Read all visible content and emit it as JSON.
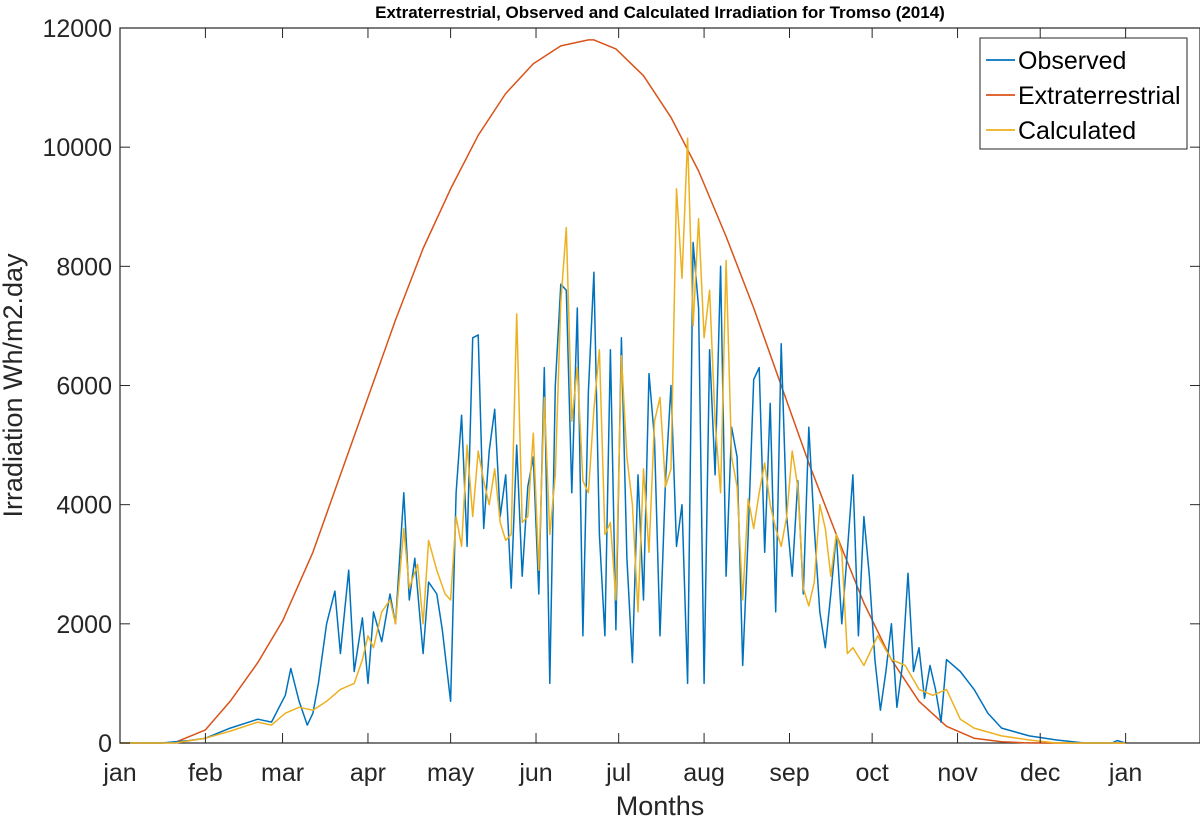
{
  "chart_data": {
    "type": "line",
    "title": "Extraterrestrial, Observed and Calculated Irradiation for Tromso (2014)",
    "xlabel": "Months",
    "ylabel": "Irradiation Wh/m2.day",
    "xlim": [
      0,
      392
    ],
    "ylim": [
      0,
      12000
    ],
    "yticks": [
      0,
      2000,
      4000,
      6000,
      8000,
      10000,
      12000
    ],
    "xticks": [
      {
        "day": 0,
        "label": "jan"
      },
      {
        "day": 31,
        "label": "feb"
      },
      {
        "day": 59,
        "label": "mar"
      },
      {
        "day": 90,
        "label": "apr"
      },
      {
        "day": 120,
        "label": "may"
      },
      {
        "day": 151,
        "label": "jun"
      },
      {
        "day": 181,
        "label": "jul"
      },
      {
        "day": 212,
        "label": "aug"
      },
      {
        "day": 243,
        "label": "sep"
      },
      {
        "day": 273,
        "label": "oct"
      },
      {
        "day": 304,
        "label": "nov"
      },
      {
        "day": 334,
        "label": "dec"
      },
      {
        "day": 365,
        "label": "jan"
      }
    ],
    "grid": false,
    "legend_position": "top-right",
    "series": [
      {
        "name": "Observed",
        "color": "#0072BD",
        "x": [
          0,
          15,
          25,
          31,
          40,
          50,
          55,
          60,
          62,
          65,
          68,
          70,
          72,
          75,
          78,
          80,
          83,
          85,
          88,
          90,
          92,
          95,
          98,
          100,
          103,
          105,
          107,
          110,
          112,
          115,
          117,
          120,
          122,
          124,
          126,
          128,
          130,
          132,
          134,
          136,
          138,
          140,
          142,
          144,
          146,
          148,
          150,
          152,
          154,
          156,
          158,
          160,
          162,
          164,
          166,
          168,
          170,
          172,
          174,
          176,
          178,
          180,
          182,
          184,
          186,
          188,
          190,
          192,
          194,
          196,
          198,
          200,
          202,
          204,
          206,
          208,
          210,
          212,
          214,
          216,
          218,
          220,
          222,
          224,
          226,
          228,
          230,
          232,
          234,
          236,
          238,
          240,
          242,
          244,
          246,
          248,
          250,
          252,
          254,
          256,
          258,
          260,
          262,
          264,
          266,
          268,
          270,
          272,
          274,
          276,
          278,
          280,
          282,
          284,
          286,
          288,
          290,
          292,
          294,
          296,
          298,
          300,
          305,
          310,
          315,
          320,
          330,
          340,
          350,
          360,
          362,
          365
        ],
        "values": [
          0,
          0,
          40,
          80,
          250,
          400,
          350,
          800,
          1250,
          700,
          300,
          500,
          1000,
          2000,
          2550,
          1500,
          2900,
          1200,
          2100,
          1000,
          2200,
          1700,
          2500,
          2000,
          4200,
          2400,
          3100,
          1500,
          2700,
          2500,
          1900,
          700,
          4200,
          5500,
          3300,
          6800,
          6850,
          3600,
          4900,
          5600,
          3800,
          4500,
          2600,
          5000,
          2800,
          4300,
          4800,
          2500,
          6300,
          1000,
          6000,
          7700,
          7600,
          4200,
          7300,
          1800,
          5900,
          7900,
          3500,
          1800,
          6600,
          1900,
          6800,
          3100,
          1350,
          4500,
          2400,
          6200,
          5100,
          1800,
          4400,
          6000,
          3300,
          4000,
          1000,
          8400,
          7300,
          1000,
          6600,
          4500,
          8000,
          2800,
          5300,
          4800,
          1300,
          3500,
          6100,
          6300,
          3200,
          5700,
          2200,
          6700,
          3800,
          2800,
          4400,
          2500,
          5300,
          3600,
          2200,
          1600,
          2500,
          3500,
          2000,
          3200,
          4500,
          1800,
          3800,
          2800,
          1400,
          550,
          1200,
          2000,
          600,
          1300,
          2850,
          1200,
          1600,
          750,
          1300,
          900,
          350,
          1400,
          1200,
          900,
          500,
          250,
          120,
          50,
          0,
          0,
          40,
          0
        ]
      },
      {
        "name": "Extraterrestrial",
        "color": "#D95319",
        "x": [
          0,
          15,
          20,
          31,
          40,
          50,
          59,
          70,
          80,
          90,
          100,
          110,
          120,
          130,
          140,
          150,
          160,
          170,
          172,
          180,
          190,
          200,
          210,
          220,
          230,
          240,
          250,
          260,
          270,
          280,
          290,
          300,
          310,
          320,
          328,
          335,
          350,
          365
        ],
        "values": [
          0,
          0,
          10,
          220,
          700,
          1350,
          2050,
          3200,
          4500,
          5800,
          7100,
          8300,
          9300,
          10200,
          10900,
          11400,
          11700,
          11800,
          11800,
          11650,
          11200,
          10500,
          9600,
          8500,
          7300,
          6000,
          4700,
          3500,
          2350,
          1400,
          700,
          280,
          80,
          20,
          5,
          0,
          0,
          0
        ]
      },
      {
        "name": "Calculated",
        "color": "#EDB120",
        "x": [
          0,
          20,
          31,
          40,
          50,
          55,
          60,
          65,
          70,
          75,
          80,
          85,
          88,
          90,
          92,
          95,
          98,
          100,
          103,
          105,
          108,
          110,
          112,
          115,
          118,
          120,
          122,
          124,
          126,
          128,
          130,
          132,
          134,
          136,
          138,
          140,
          142,
          144,
          146,
          148,
          150,
          152,
          154,
          156,
          158,
          160,
          162,
          164,
          166,
          168,
          170,
          172,
          174,
          176,
          178,
          180,
          182,
          184,
          186,
          188,
          190,
          192,
          194,
          196,
          198,
          200,
          202,
          204,
          206,
          208,
          210,
          212,
          214,
          216,
          218,
          220,
          222,
          224,
          226,
          228,
          230,
          232,
          234,
          236,
          238,
          240,
          242,
          244,
          246,
          248,
          250,
          252,
          254,
          256,
          258,
          260,
          262,
          264,
          266,
          270,
          275,
          280,
          285,
          290,
          295,
          300,
          305,
          310,
          320,
          330,
          340,
          350,
          360,
          362,
          365
        ],
        "values": [
          0,
          0,
          80,
          200,
          350,
          300,
          500,
          600,
          550,
          700,
          900,
          1000,
          1400,
          1800,
          1600,
          2200,
          2400,
          2000,
          3600,
          2600,
          3000,
          2000,
          3400,
          2900,
          2500,
          2400,
          3800,
          3300,
          5000,
          3800,
          4900,
          4400,
          4000,
          4600,
          3700,
          3400,
          3500,
          7200,
          3700,
          3800,
          5200,
          2900,
          5800,
          3500,
          4500,
          7400,
          8650,
          5400,
          6300,
          4400,
          4200,
          5600,
          6600,
          3500,
          3700,
          2400,
          6500,
          4800,
          4000,
          2200,
          4600,
          3200,
          5400,
          5800,
          4300,
          4600,
          9300,
          7800,
          10150,
          7000,
          8800,
          6800,
          7600,
          5400,
          4200,
          8100,
          4800,
          4300,
          2400,
          4100,
          3600,
          4200,
          4700,
          4000,
          3600,
          3300,
          3800,
          4900,
          4300,
          2600,
          2300,
          2700,
          4000,
          3600,
          2800,
          3500,
          3200,
          1500,
          1600,
          1300,
          1800,
          1400,
          1300,
          900,
          800,
          900,
          400,
          250,
          120,
          50,
          0,
          0,
          0,
          0,
          0
        ]
      }
    ]
  }
}
